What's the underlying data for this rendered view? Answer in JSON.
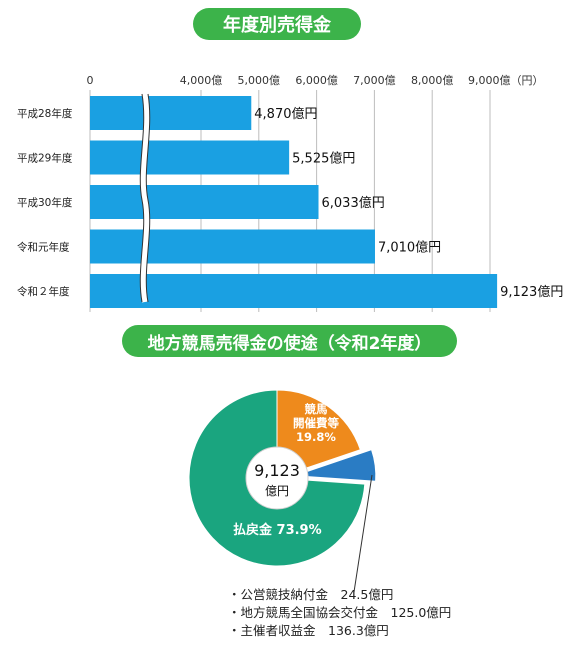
{
  "chart_data": [
    {
      "type": "bar",
      "orientation": "horizontal",
      "title": "年度別売得金",
      "categories": [
        "平成28年度",
        "平成29年度",
        "平成30年度",
        "令和元年度",
        "令和２年度"
      ],
      "values": [
        4870,
        5525,
        6033,
        7010,
        9123
      ],
      "data_labels": [
        "4,870億円",
        "5,525億円",
        "6,033億円",
        "7,010億円",
        "9,123億円"
      ],
      "ticks": [
        0,
        4000,
        5000,
        6000,
        7000,
        8000,
        9000
      ],
      "tick_labels": [
        "0",
        "4,000億",
        "5,000億",
        "6,000億",
        "7,000億",
        "8,000億",
        "9,000億（円）"
      ],
      "axis_break": true,
      "grid": true,
      "color": "#1aa0e2"
    },
    {
      "type": "pie",
      "title": "地方競馬売得金の使途（令和2年度）",
      "center_label": [
        "9,123",
        "億円"
      ],
      "slices": [
        {
          "name": "競馬開催費等",
          "label_lines": [
            "競馬",
            "開催費等",
            "19.8%"
          ],
          "percent": 19.8,
          "color": "#ee8a1c"
        },
        {
          "name": "small",
          "percent": 6.3,
          "color": "#2a7cc4"
        },
        {
          "name": "払戻金",
          "label": "払戻金 73.9%",
          "percent": 73.9,
          "color": "#1aa57f"
        }
      ],
      "notes": [
        "・公営競技納付金　24.5億円",
        "・地方競馬全国協会交付金　125.0億円",
        "・主催者収益金　136.3億円"
      ]
    }
  ]
}
